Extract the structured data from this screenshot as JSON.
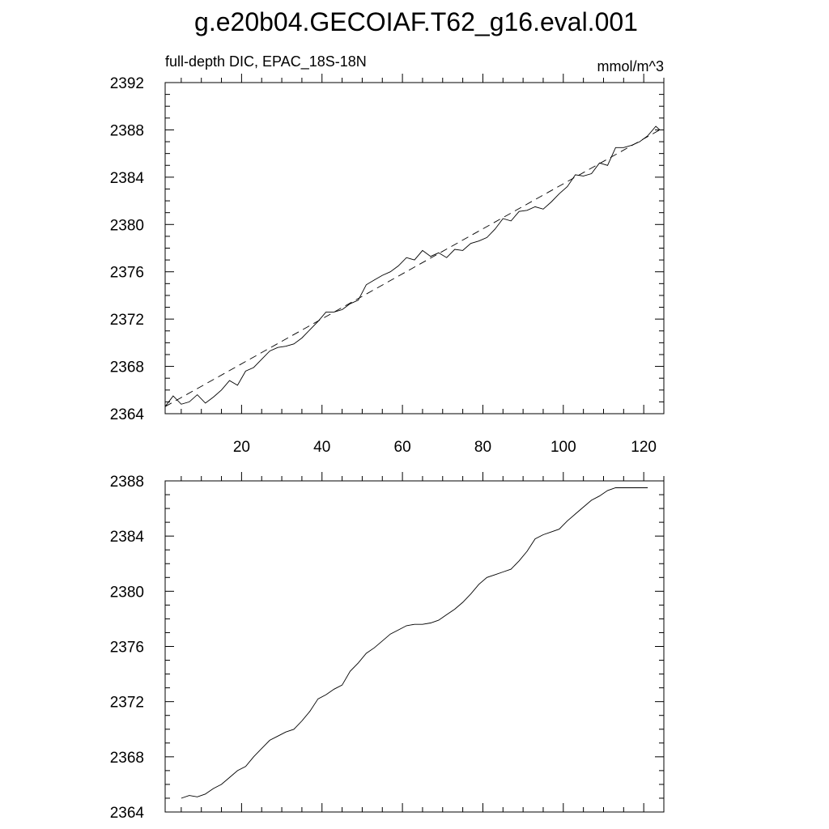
{
  "title": "g.e20b04.GECOIAF.T62_g16.eval.001",
  "chart_data": [
    {
      "type": "line",
      "subtitle_left": "full-depth DIC, EPAC_18S-18N",
      "subtitle_right": "mmol/m^3",
      "xlim": [
        1,
        125
      ],
      "ylim": [
        2364,
        2392
      ],
      "xticks": [
        20,
        40,
        60,
        80,
        100,
        120
      ],
      "xtick_labels": [
        "20",
        "40",
        "60",
        "80",
        "100",
        "120"
      ],
      "yticks": [
        2364,
        2368,
        2372,
        2376,
        2380,
        2384,
        2388,
        2392
      ],
      "ytick_labels": [
        "2364",
        "2368",
        "2372",
        "2376",
        "2380",
        "2384",
        "2388",
        "2392"
      ],
      "series": [
        {
          "style": "solid",
          "x": [
            1,
            3,
            5,
            7,
            9,
            11,
            13,
            15,
            17,
            19,
            21,
            23,
            25,
            27,
            29,
            31,
            33,
            35,
            37,
            39,
            41,
            43,
            45,
            47,
            49,
            51,
            53,
            55,
            57,
            59,
            61,
            63,
            65,
            67,
            69,
            71,
            73,
            75,
            77,
            79,
            81,
            83,
            85,
            87,
            89,
            91,
            93,
            95,
            97,
            99,
            101,
            103,
            105,
            107,
            109,
            111,
            113,
            115,
            117,
            119,
            121,
            123,
            124
          ],
          "y": [
            2364.6,
            2365.5,
            2364.8,
            2365.0,
            2365.6,
            2364.9,
            2365.4,
            2366.0,
            2366.8,
            2366.4,
            2367.6,
            2367.9,
            2368.6,
            2369.3,
            2369.6,
            2369.7,
            2369.9,
            2370.4,
            2371.1,
            2371.8,
            2372.6,
            2372.6,
            2372.8,
            2373.3,
            2373.6,
            2374.9,
            2375.3,
            2375.7,
            2376.0,
            2376.5,
            2377.2,
            2377.0,
            2377.8,
            2377.3,
            2377.6,
            2377.2,
            2377.9,
            2377.8,
            2378.4,
            2378.6,
            2378.9,
            2379.6,
            2380.5,
            2380.3,
            2381.1,
            2381.2,
            2381.5,
            2381.3,
            2381.9,
            2382.6,
            2383.2,
            2384.2,
            2384.1,
            2384.3,
            2385.2,
            2385.0,
            2386.5,
            2386.5,
            2386.7,
            2387.0,
            2387.5,
            2388.3,
            2388.0
          ]
        },
        {
          "style": "dashed",
          "x": [
            1,
            124
          ],
          "y": [
            2364.6,
            2388.0
          ]
        }
      ]
    },
    {
      "type": "line",
      "xlim": [
        1,
        125
      ],
      "ylim": [
        2364,
        2388
      ],
      "xticks": [
        20,
        40,
        60,
        80,
        100,
        120
      ],
      "yticks": [
        2364,
        2368,
        2372,
        2376,
        2380,
        2384,
        2388
      ],
      "ytick_labels": [
        "2364",
        "2368",
        "2372",
        "2376",
        "2380",
        "2384",
        "2388"
      ],
      "series": [
        {
          "style": "solid",
          "x": [
            5,
            7,
            9,
            11,
            13,
            15,
            17,
            19,
            21,
            23,
            25,
            27,
            29,
            31,
            33,
            35,
            37,
            39,
            41,
            43,
            45,
            47,
            49,
            51,
            53,
            55,
            57,
            59,
            61,
            63,
            65,
            67,
            69,
            71,
            73,
            75,
            77,
            79,
            81,
            83,
            85,
            87,
            89,
            91,
            93,
            95,
            97,
            99,
            101,
            103,
            105,
            107,
            109,
            111,
            113,
            115,
            117,
            119,
            121
          ],
          "y": [
            2365.0,
            2365.2,
            2365.1,
            2365.3,
            2365.7,
            2366.0,
            2366.5,
            2367.0,
            2367.3,
            2368.0,
            2368.6,
            2369.2,
            2369.5,
            2369.8,
            2370.0,
            2370.6,
            2371.3,
            2372.2,
            2372.5,
            2372.9,
            2373.2,
            2374.2,
            2374.8,
            2375.5,
            2375.9,
            2376.4,
            2376.9,
            2377.2,
            2377.5,
            2377.6,
            2377.6,
            2377.7,
            2377.9,
            2378.3,
            2378.7,
            2379.2,
            2379.8,
            2380.5,
            2381.0,
            2381.2,
            2381.4,
            2381.6,
            2382.2,
            2382.9,
            2383.8,
            2384.1,
            2384.3,
            2384.5,
            2385.1,
            2385.6,
            2386.1,
            2386.6,
            2386.9,
            2387.3,
            2387.5,
            2387.5,
            2387.5,
            2387.5,
            2387.5
          ]
        }
      ]
    }
  ]
}
